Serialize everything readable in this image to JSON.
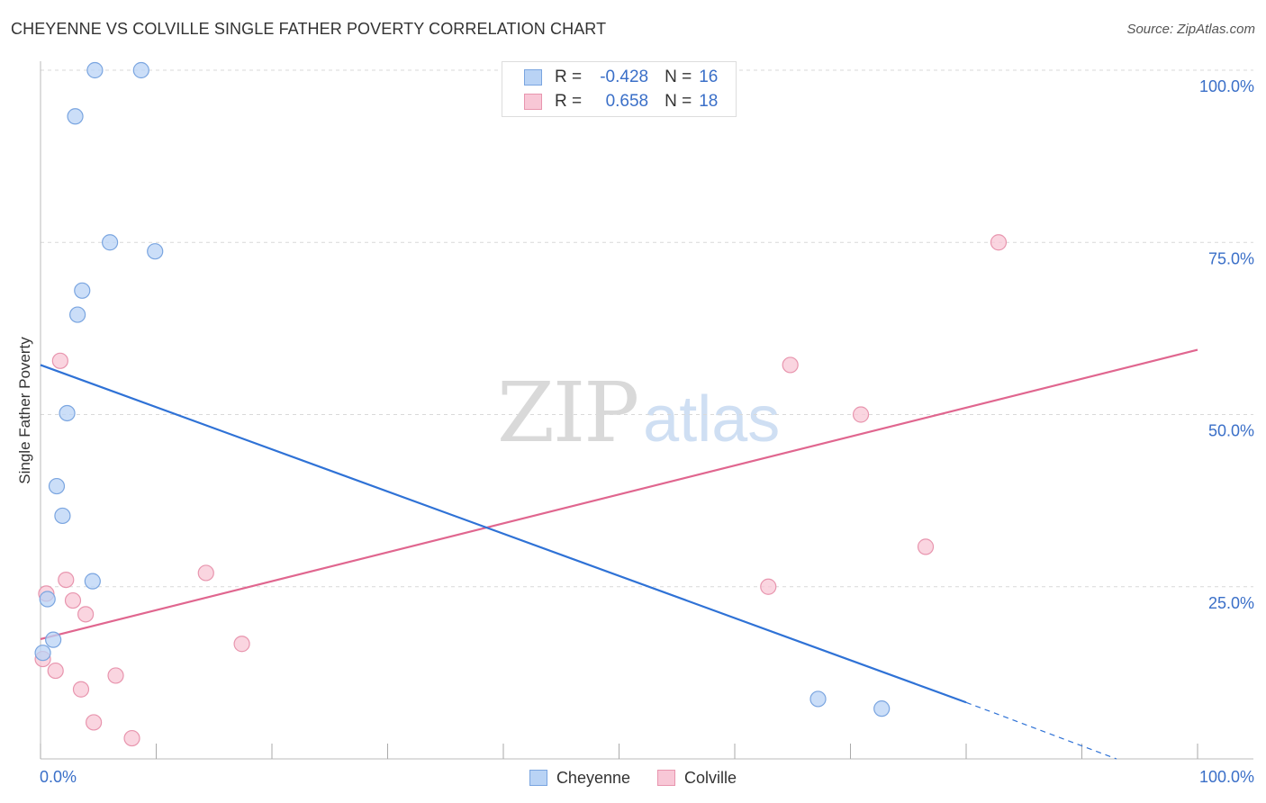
{
  "title": "CHEYENNE VS COLVILLE SINGLE FATHER POVERTY CORRELATION CHART",
  "source": "Source: ZipAtlas.com",
  "watermark": {
    "zip": "ZIP",
    "atlas": "atlas"
  },
  "colors": {
    "cheyenne_fill": "#b9d3f5",
    "cheyenne_stroke": "#7aa5e0",
    "cheyenne_line": "#2f72d6",
    "colville_fill": "#f8c7d6",
    "colville_stroke": "#e895ae",
    "colville_line": "#e0668f",
    "axis_text": "#3a6fc8",
    "grid": "#d9d9d9"
  },
  "legend": {
    "rows": [
      {
        "series": "Cheyenne",
        "r_label": "R =",
        "r_value": "-0.428",
        "n_label": "N =",
        "n_value": "16"
      },
      {
        "series": "Colville",
        "r_label": "R =",
        "r_value": "0.658",
        "n_label": "N =",
        "n_value": "18"
      }
    ],
    "bottom": [
      "Cheyenne",
      "Colville"
    ]
  },
  "chart_data": {
    "type": "scatter",
    "title": "CHEYENNE VS COLVILLE SINGLE FATHER POVERTY CORRELATION CHART",
    "xlabel": "",
    "ylabel": "Single Father Poverty",
    "xlim": [
      0,
      100
    ],
    "ylim": [
      0,
      100
    ],
    "x_tick_labels": [
      "0.0%",
      "100.0%"
    ],
    "y_tick_values": [
      25,
      50,
      75,
      100
    ],
    "y_tick_labels": [
      "25.0%",
      "50.0%",
      "75.0%",
      "100.0%"
    ],
    "grid": true,
    "series": [
      {
        "name": "Cheyenne",
        "points": [
          {
            "x": 4.7,
            "y": 100
          },
          {
            "x": 8.7,
            "y": 100
          },
          {
            "x": 3.0,
            "y": 93.3
          },
          {
            "x": 6.0,
            "y": 75.0
          },
          {
            "x": 9.9,
            "y": 73.7
          },
          {
            "x": 3.6,
            "y": 68.0
          },
          {
            "x": 3.2,
            "y": 64.5
          },
          {
            "x": 2.3,
            "y": 50.2
          },
          {
            "x": 1.4,
            "y": 39.6
          },
          {
            "x": 1.9,
            "y": 35.3
          },
          {
            "x": 4.5,
            "y": 25.8
          },
          {
            "x": 0.6,
            "y": 23.2
          },
          {
            "x": 1.1,
            "y": 17.3
          },
          {
            "x": 0.2,
            "y": 15.4
          },
          {
            "x": 67.2,
            "y": 8.7
          },
          {
            "x": 72.7,
            "y": 7.3
          }
        ],
        "trend": {
          "x1": 0,
          "y1": 57.2,
          "x2": 80,
          "y2": 8.2,
          "dash_to_x": 93,
          "dash_to_y": 0
        }
      },
      {
        "name": "Colville",
        "points": [
          {
            "x": 1.7,
            "y": 57.8
          },
          {
            "x": 0.5,
            "y": 24.0
          },
          {
            "x": 2.2,
            "y": 26.0
          },
          {
            "x": 2.8,
            "y": 23.0
          },
          {
            "x": 3.9,
            "y": 21.0
          },
          {
            "x": 14.3,
            "y": 27.0
          },
          {
            "x": 17.4,
            "y": 16.7
          },
          {
            "x": 0.2,
            "y": 14.5
          },
          {
            "x": 1.3,
            "y": 12.8
          },
          {
            "x": 3.5,
            "y": 10.1
          },
          {
            "x": 6.5,
            "y": 12.1
          },
          {
            "x": 4.6,
            "y": 5.3
          },
          {
            "x": 7.9,
            "y": 3.0
          },
          {
            "x": 64.8,
            "y": 57.2
          },
          {
            "x": 70.9,
            "y": 50.0
          },
          {
            "x": 62.9,
            "y": 25.0
          },
          {
            "x": 76.5,
            "y": 30.8
          },
          {
            "x": 82.8,
            "y": 75.0
          }
        ],
        "trend": {
          "x1": 0,
          "y1": 17.4,
          "x2": 100,
          "y2": 59.4
        }
      }
    ]
  }
}
